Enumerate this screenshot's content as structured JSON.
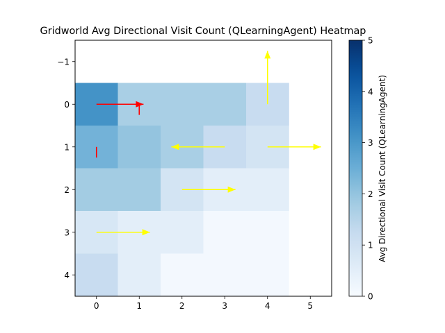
{
  "chart_data": {
    "type": "heatmap",
    "title": "Gridworld Avg Directional Visit Count (QLearningAgent) Heatmap",
    "xlabel": "",
    "ylabel": "",
    "x_ticks": [
      "0",
      "1",
      "2",
      "3",
      "4",
      "5"
    ],
    "y_ticks": [
      "−1",
      "0",
      "1",
      "2",
      "3",
      "4"
    ],
    "xlim": [
      -0.5,
      5.5
    ],
    "ylim": [
      4.5,
      -1.5
    ],
    "colorbar": {
      "label": "Avg Directional Visit Count (QLearningAgent)",
      "min": 0,
      "max": 5,
      "ticks": [
        "0",
        "1",
        "2",
        "3",
        "4",
        "5"
      ],
      "colormap": "Blues"
    },
    "cells": [
      {
        "col": 0,
        "row": 0,
        "value": 3.1
      },
      {
        "col": 1,
        "row": 0,
        "value": 1.7
      },
      {
        "col": 2,
        "row": 0,
        "value": 1.7
      },
      {
        "col": 3,
        "row": 0,
        "value": 1.7
      },
      {
        "col": 4,
        "row": 0,
        "value": 1.2
      },
      {
        "col": 0,
        "row": 1,
        "value": 2.4
      },
      {
        "col": 1,
        "row": 1,
        "value": 2.0
      },
      {
        "col": 2,
        "row": 1,
        "value": 1.7
      },
      {
        "col": 3,
        "row": 1,
        "value": 1.2
      },
      {
        "col": 4,
        "row": 1,
        "value": 0.9
      },
      {
        "col": 0,
        "row": 2,
        "value": 1.8
      },
      {
        "col": 1,
        "row": 2,
        "value": 1.8
      },
      {
        "col": 2,
        "row": 2,
        "value": 0.9
      },
      {
        "col": 3,
        "row": 2,
        "value": 0.5
      },
      {
        "col": 4,
        "row": 2,
        "value": 0.5
      },
      {
        "col": 0,
        "row": 3,
        "value": 0.8
      },
      {
        "col": 1,
        "row": 3,
        "value": 0.5
      },
      {
        "col": 2,
        "row": 3,
        "value": 0.5
      },
      {
        "col": 3,
        "row": 3,
        "value": 0.1
      },
      {
        "col": 4,
        "row": 3,
        "value": 0.1
      },
      {
        "col": 0,
        "row": 4,
        "value": 1.2
      },
      {
        "col": 1,
        "row": 4,
        "value": 0.5
      },
      {
        "col": 2,
        "row": 4,
        "value": 0.1
      },
      {
        "col": 3,
        "row": 4,
        "value": 0.1
      },
      {
        "col": 4,
        "row": 4,
        "value": 0.1
      }
    ],
    "arrows": [
      {
        "x": 0,
        "y": 0,
        "dx": 1.1,
        "dy": 0,
        "color": "#ff0000"
      },
      {
        "x": 1,
        "y": 0,
        "dx": 0,
        "dy": 0.25,
        "color": "#ff0000"
      },
      {
        "x": 0,
        "y": 1,
        "dx": 0,
        "dy": 0.25,
        "color": "#ff0000"
      },
      {
        "x": 4,
        "y": 0,
        "dx": 0,
        "dy": -1.25,
        "color": "#ffff00"
      },
      {
        "x": 3,
        "y": 1,
        "dx": -1.25,
        "dy": 0,
        "color": "#ffff00"
      },
      {
        "x": 4,
        "y": 1,
        "dx": 1.25,
        "dy": 0,
        "color": "#ffff00"
      },
      {
        "x": 2,
        "y": 2,
        "dx": 1.25,
        "dy": 0,
        "color": "#ffff00"
      },
      {
        "x": 0,
        "y": 3,
        "dx": 1.25,
        "dy": 0,
        "color": "#ffff00"
      }
    ]
  }
}
